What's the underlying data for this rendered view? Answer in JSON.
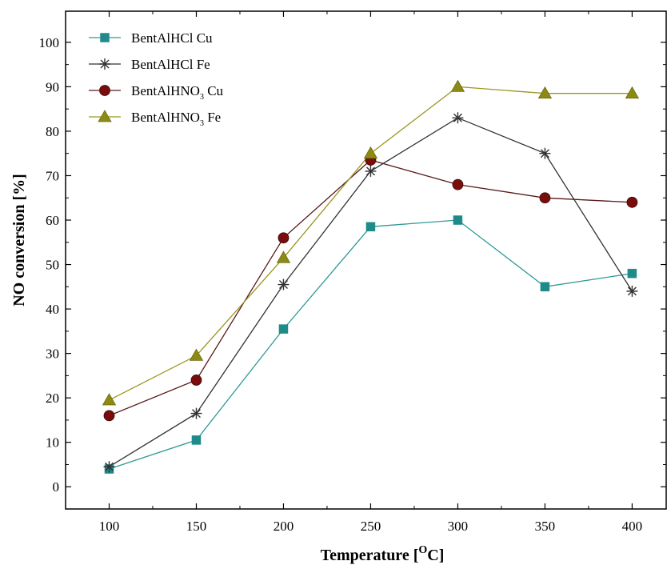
{
  "chart_data": {
    "type": "line",
    "xlabel": "Temperature [",
    "xlabel_sup": "O",
    "xlabel_unit": "C]",
    "ylabel": "NO conversion [%]",
    "x": [
      100,
      150,
      200,
      250,
      300,
      350,
      400
    ],
    "xlim": [
      75,
      420
    ],
    "ylim": [
      -5,
      107
    ],
    "xticks": [
      "100",
      "150",
      "200",
      "250",
      "300",
      "350",
      "400"
    ],
    "yticks": [
      "0",
      "10",
      "20",
      "30",
      "40",
      "50",
      "60",
      "70",
      "80",
      "90",
      "100"
    ],
    "legend_position": "top-left",
    "grid": false,
    "series": [
      {
        "name": "BentAlHCl Cu",
        "name_main": "BentAlHCl Cu",
        "name_sub": "",
        "name_tail": "",
        "marker": "square",
        "color": "#1f8a8a",
        "line_color": "#2e9a96",
        "values": [
          4,
          10.5,
          35.5,
          58.5,
          60,
          45,
          48
        ]
      },
      {
        "name": "BentAlHCl Fe",
        "name_main": "BentAlHCl Fe",
        "name_sub": "",
        "name_tail": "",
        "marker": "asterisk",
        "color": "#333333",
        "line_color": "#333333",
        "values": [
          4.5,
          16.5,
          45.5,
          71,
          83,
          75,
          44
        ]
      },
      {
        "name": "BentAlHNO3 Cu",
        "name_main": "BentAlHNO",
        "name_sub": "3",
        "name_tail": " Cu",
        "marker": "circle",
        "color": "#7a0c0c",
        "line_color": "#5a1a1a",
        "values": [
          16,
          24,
          56,
          73.5,
          68,
          65,
          64
        ]
      },
      {
        "name": "BentAlHNO3 Fe",
        "name_main": "BentAlHNO",
        "name_sub": "3",
        "name_tail": " Fe",
        "marker": "triangle",
        "color": "#8c8a12",
        "line_color": "#9a9620",
        "values": [
          19.5,
          29.5,
          51.5,
          75,
          90,
          88.5,
          88.5
        ]
      }
    ]
  }
}
